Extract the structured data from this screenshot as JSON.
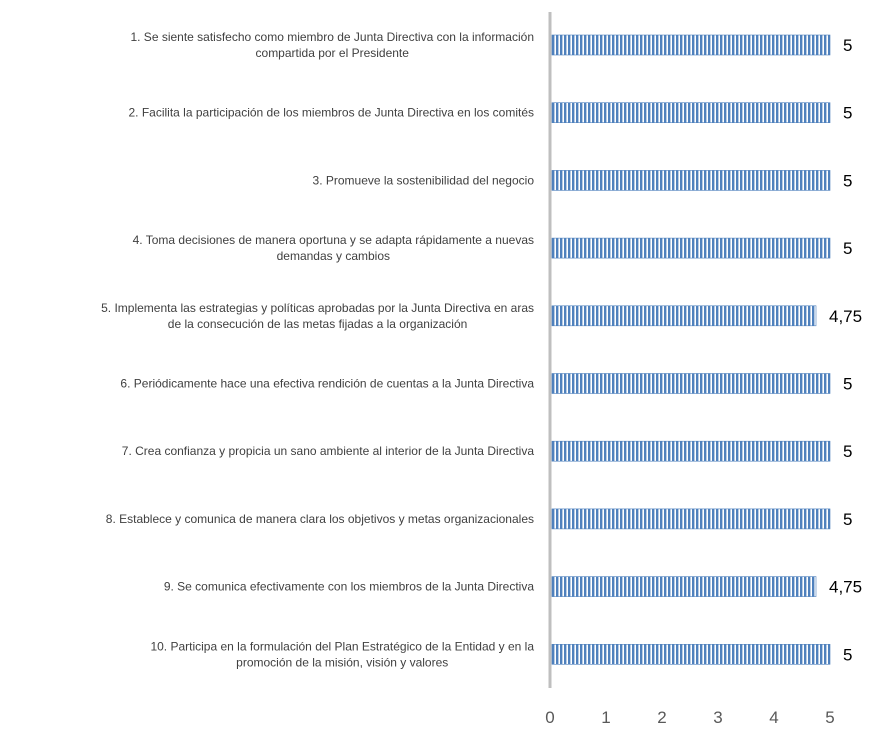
{
  "chart_data": {
    "type": "bar",
    "orientation": "horizontal",
    "title": "",
    "xlabel": "",
    "ylabel": "",
    "xlim": [
      0,
      5
    ],
    "x_ticks": [
      "0",
      "1",
      "2",
      "3",
      "4",
      "5"
    ],
    "grid": false,
    "legend": "none",
    "bar_color": "#4f81bd",
    "bar_pattern": "vertical-stripes",
    "categories": [
      [
        "1. Se siente satisfecho como miembro de Junta Directiva con la información",
        "compartida por el Presidente"
      ],
      [
        "2. Facilita la participación de los miembros de Junta Directiva en los comités"
      ],
      [
        "3. Promueve la sostenibilidad del negocio"
      ],
      [
        "4. Toma decisiones de manera oportuna y se adapta rápidamente a nuevas",
        "demandas y cambios"
      ],
      [
        "5. Implementa las estrategias y políticas aprobadas por la Junta Directiva en aras",
        "de la consecución de las metas fijadas a la organización"
      ],
      [
        "6. Periódicamente hace una efectiva rendición de cuentas a la Junta Directiva"
      ],
      [
        "7. Crea confianza y propicia un sano ambiente al interior de la Junta Directiva"
      ],
      [
        "8. Establece y comunica de manera clara los objetivos y metas organizacionales"
      ],
      [
        "9. Se comunica efectivamente con los miembros de la Junta Directiva"
      ],
      [
        "10. Participa en la formulación del Plan Estratégico de la Entidad y en la",
        "promoción de la misión, visión y valores"
      ]
    ],
    "values": [
      5,
      5,
      5,
      5,
      4.75,
      5,
      5,
      5,
      4.75,
      5
    ],
    "value_labels": [
      "5",
      "5",
      "5",
      "5",
      "4,75",
      "5",
      "5",
      "5",
      "4,75",
      "5"
    ]
  }
}
